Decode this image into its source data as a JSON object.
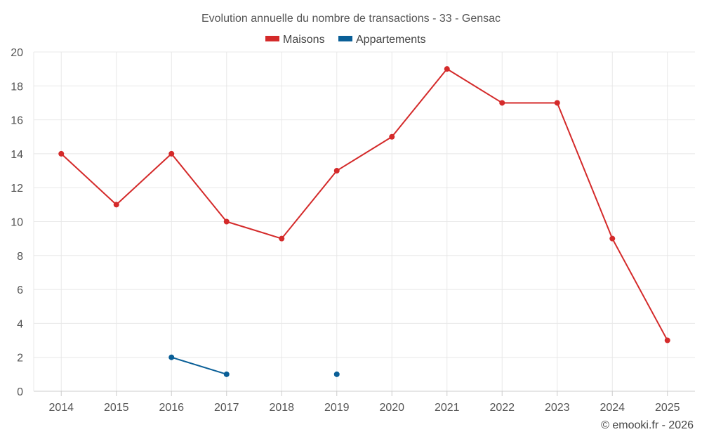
{
  "chart_data": {
    "type": "line",
    "title": "Evolution annuelle du nombre de transactions - 33 - Gensac",
    "categories": [
      "2014",
      "2015",
      "2016",
      "2017",
      "2018",
      "2019",
      "2020",
      "2021",
      "2022",
      "2023",
      "2024",
      "2025"
    ],
    "series": [
      {
        "name": "Maisons",
        "color": "#d42a2a",
        "values": [
          14,
          11,
          14,
          10,
          9,
          13,
          15,
          19,
          17,
          17,
          9,
          3
        ]
      },
      {
        "name": "Appartements",
        "color": "#0a5f97",
        "values": [
          null,
          null,
          2,
          1,
          null,
          1,
          null,
          null,
          null,
          null,
          null,
          null
        ]
      }
    ],
    "ylim": [
      0,
      20
    ],
    "yticks": [
      0,
      2,
      4,
      6,
      8,
      10,
      12,
      14,
      16,
      18,
      20
    ],
    "grid": true,
    "legend": "top-center",
    "xlabel": "",
    "ylabel": ""
  },
  "credit": "© emooki.fr - 2026"
}
